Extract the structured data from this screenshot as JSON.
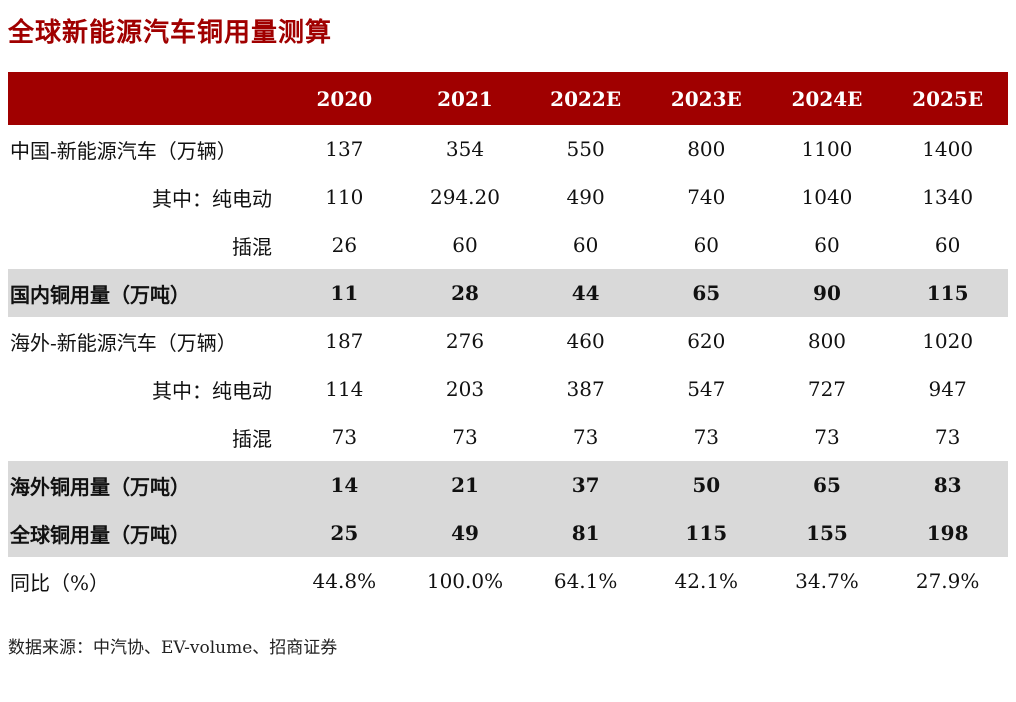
{
  "title": "全球新能源汽车铜用量测算",
  "colors": {
    "title_red": "#A00000",
    "header_bg": "#A00000",
    "shaded_row": "#D9D9D9"
  },
  "table": {
    "headers": [
      "",
      "2020",
      "2021",
      "2022E",
      "2023E",
      "2024E",
      "2025E"
    ],
    "rows": [
      {
        "label": "中国-新能源汽车（万辆）",
        "values": [
          "137",
          "354",
          "550",
          "800",
          "1100",
          "1400"
        ]
      },
      {
        "label": "其中：纯电动",
        "values": [
          "110",
          "294.20",
          "490",
          "740",
          "1040",
          "1340"
        ]
      },
      {
        "label": "插混",
        "values": [
          "26",
          "60",
          "60",
          "60",
          "60",
          "60"
        ]
      },
      {
        "label": "国内铜用量（万吨）",
        "values": [
          "11",
          "28",
          "44",
          "65",
          "90",
          "115"
        ]
      },
      {
        "label": "海外-新能源汽车（万辆）",
        "values": [
          "187",
          "276",
          "460",
          "620",
          "800",
          "1020"
        ]
      },
      {
        "label": "其中：纯电动",
        "values": [
          "114",
          "203",
          "387",
          "547",
          "727",
          "947"
        ]
      },
      {
        "label": "插混",
        "values": [
          "73",
          "73",
          "73",
          "73",
          "73",
          "73"
        ]
      },
      {
        "label": "海外铜用量（万吨）",
        "values": [
          "14",
          "21",
          "37",
          "50",
          "65",
          "83"
        ]
      },
      {
        "label": "全球铜用量（万吨）",
        "values": [
          "25",
          "49",
          "81",
          "115",
          "155",
          "198"
        ]
      },
      {
        "label": "同比（%）",
        "values": [
          "44.8%",
          "100.0%",
          "64.1%",
          "42.1%",
          "34.7%",
          "27.9%"
        ]
      }
    ]
  },
  "footer": {
    "source": "数据来源：中汽协、EV-volume、招商证券"
  }
}
